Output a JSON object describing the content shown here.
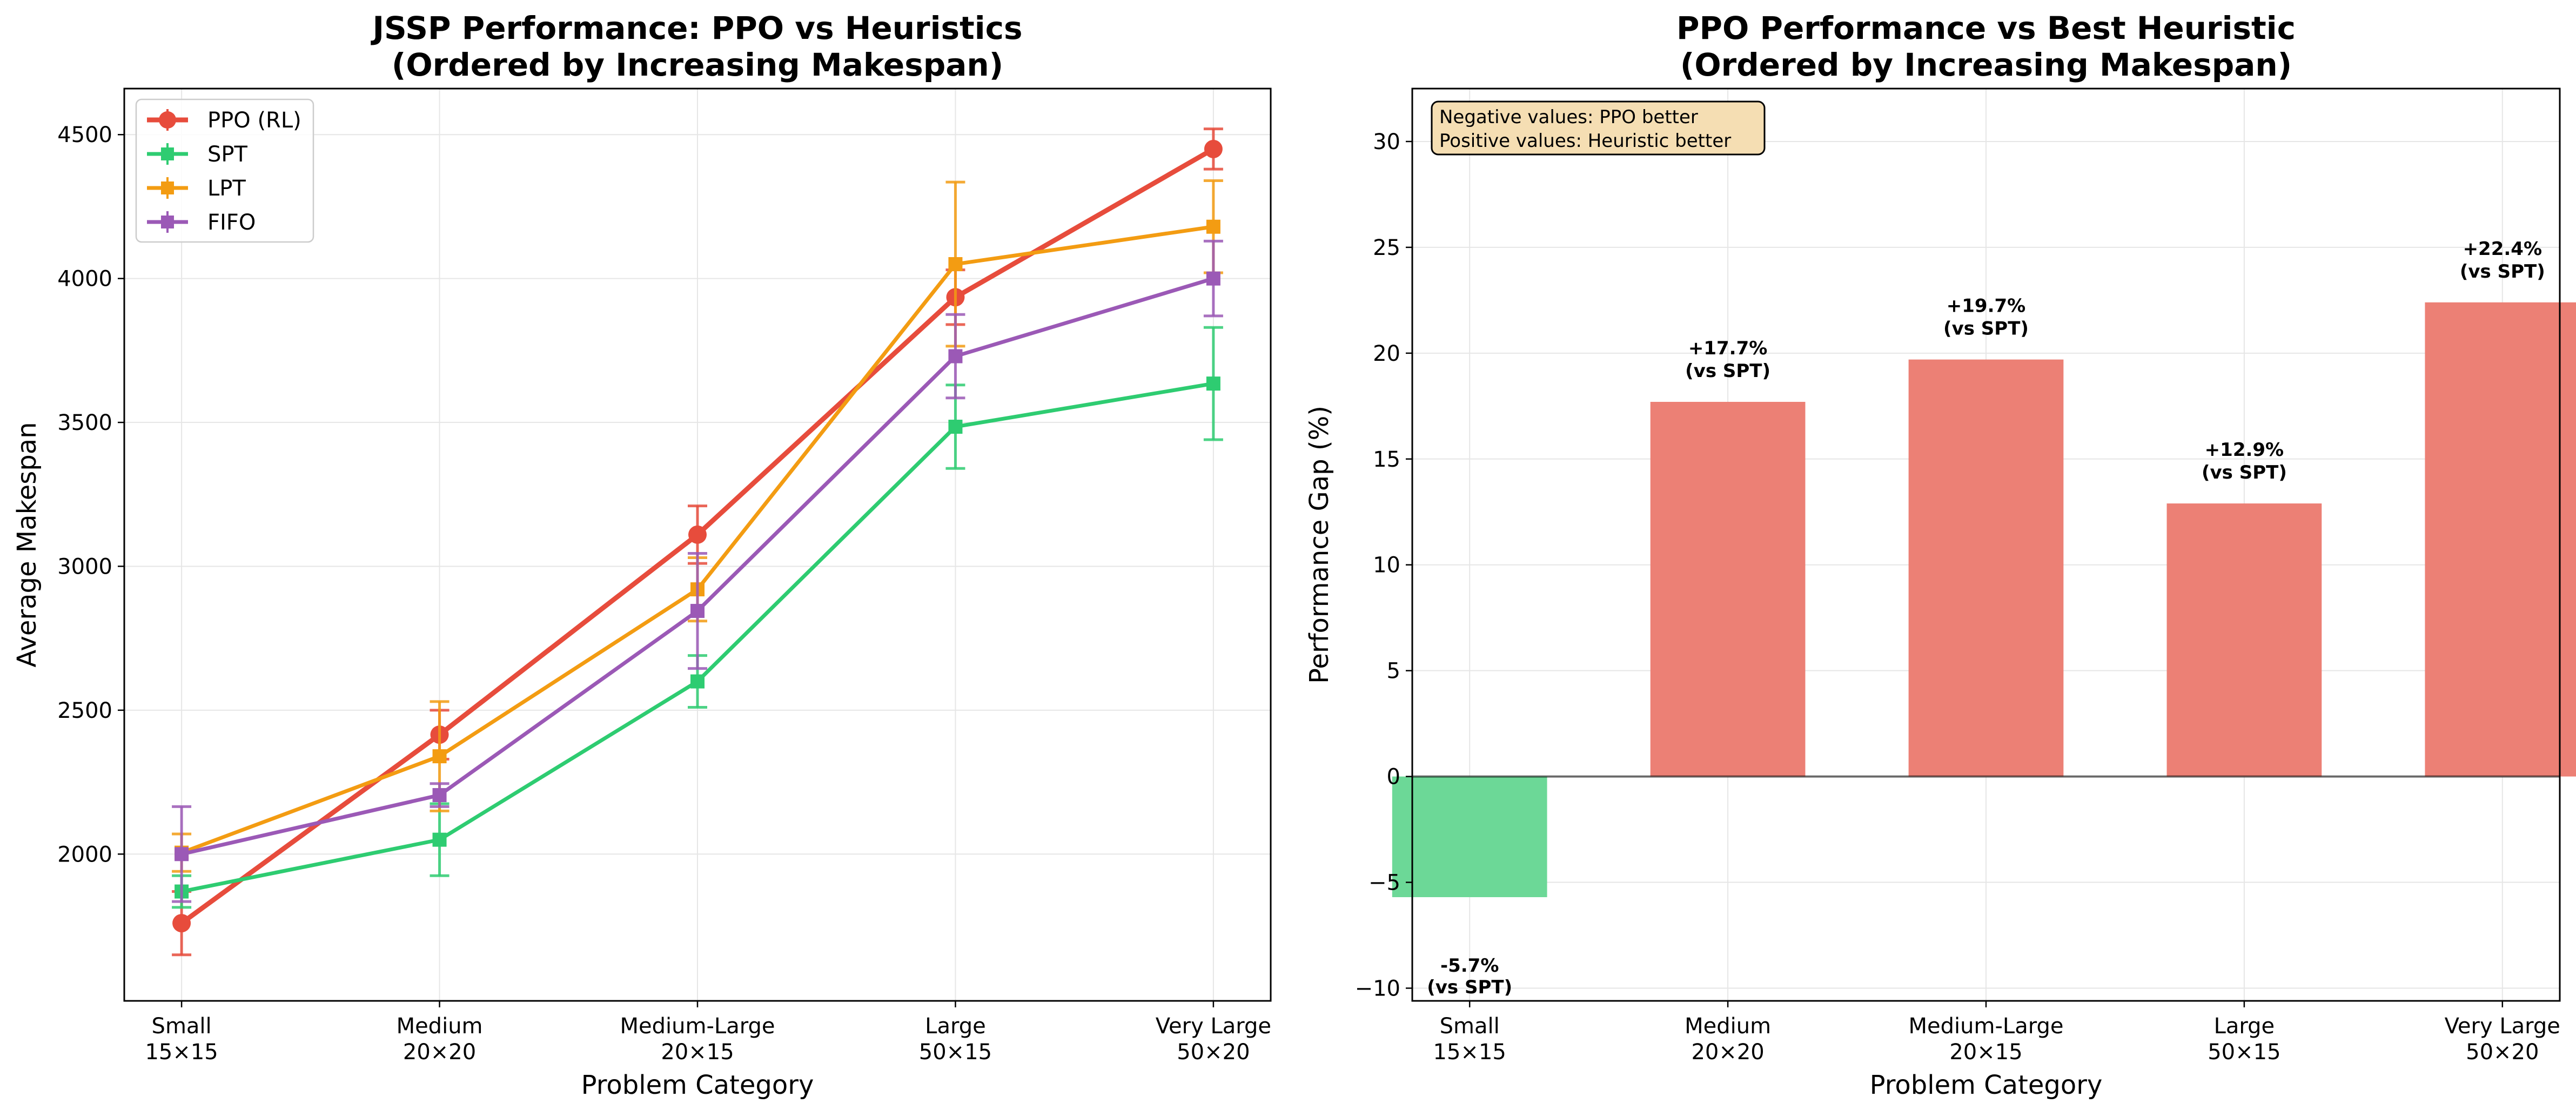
{
  "chart_data": [
    {
      "type": "line",
      "title": "JSSP Performance: PPO vs Heuristics",
      "subtitle": "(Ordered by Increasing Makespan)",
      "xlabel": "Problem Category",
      "ylabel": "Average Makespan",
      "categories": [
        [
          "Small",
          "15×15"
        ],
        [
          "Medium",
          "20×20"
        ],
        [
          "Medium-Large",
          "20×15"
        ],
        [
          "Large",
          "50×15"
        ],
        [
          "Very Large",
          "50×20"
        ]
      ],
      "ylim": [
        1490,
        4660
      ],
      "yticks": [
        2000,
        2500,
        3000,
        3500,
        4000,
        4500
      ],
      "grid": true,
      "legend_position": "top-left",
      "series": [
        {
          "name": "PPO (RL)",
          "color": "#e74c3c",
          "marker": "circle",
          "values": [
            1760,
            2415,
            3110,
            3935,
            4450
          ],
          "errors": [
            110,
            85,
            100,
            95,
            70
          ]
        },
        {
          "name": "SPT",
          "color": "#2ecc71",
          "marker": "square",
          "values": [
            1870,
            2050,
            2600,
            3485,
            3635
          ],
          "errors": [
            55,
            125,
            90,
            145,
            195
          ]
        },
        {
          "name": "LPT",
          "color": "#f39c12",
          "marker": "square",
          "values": [
            2005,
            2340,
            2920,
            4050,
            4180
          ],
          "errors": [
            65,
            190,
            110,
            285,
            160
          ]
        },
        {
          "name": "FIFO",
          "color": "#9b59b6",
          "marker": "square",
          "values": [
            2000,
            2205,
            2845,
            3730,
            4000
          ],
          "errors": [
            165,
            40,
            200,
            145,
            130
          ]
        }
      ]
    },
    {
      "type": "bar",
      "title": "PPO Performance vs Best Heuristic",
      "subtitle": "(Ordered by Increasing Makespan)",
      "xlabel": "Problem Category",
      "ylabel": "Performance Gap (%)",
      "categories": [
        [
          "Small",
          "15×15"
        ],
        [
          "Medium",
          "20×20"
        ],
        [
          "Medium-Large",
          "20×15"
        ],
        [
          "Large",
          "50×15"
        ],
        [
          "Very Large",
          "50×20"
        ]
      ],
      "values": [
        -5.7,
        17.7,
        19.7,
        12.9,
        22.4
      ],
      "labels": [
        [
          "-5.7%",
          "(vs SPT)"
        ],
        [
          "+17.7%",
          "(vs SPT)"
        ],
        [
          "+19.7%",
          "(vs SPT)"
        ],
        [
          "+12.9%",
          "(vs SPT)"
        ],
        [
          "+22.4%",
          "(vs SPT)"
        ]
      ],
      "ylim": [
        -10.6,
        32.5
      ],
      "yticks": [
        -10,
        -5,
        0,
        5,
        10,
        15,
        20,
        25,
        30
      ],
      "ytick_labels": [
        "−10",
        "−5",
        "0",
        "5",
        "10",
        "15",
        "20",
        "25",
        "30"
      ],
      "grid": true,
      "colors": {
        "negative": "#6cd897",
        "positive": "#ec8075"
      },
      "annotation": [
        "Negative values: PPO better",
        "Positive values: Heuristic better"
      ]
    }
  ]
}
